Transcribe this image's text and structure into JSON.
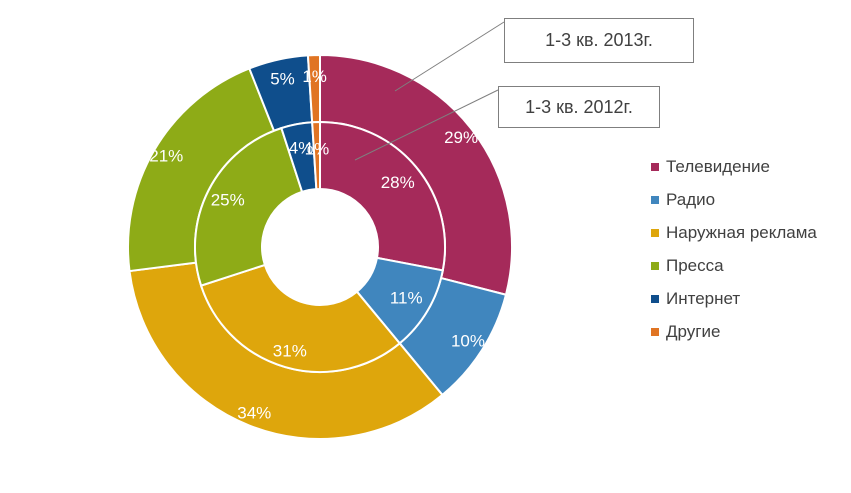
{
  "colors": {
    "tv": "#a52a5a",
    "radio": "#4086be",
    "outdoor": "#dea60c",
    "press": "#8eab17",
    "internet": "#0f4e8c",
    "other": "#e07423"
  },
  "chart_data": {
    "type": "donut",
    "categories": [
      "Телевидение",
      "Радио",
      "Наружная реклама",
      "Пресса",
      "Интернет",
      "Другие"
    ],
    "series": [
      {
        "name": "1-3 кв. 2013г.",
        "ring": "outer",
        "values": [
          29,
          10,
          34,
          21,
          5,
          1
        ],
        "labels": [
          "29%",
          "10%",
          "34%",
          "21%",
          "5%",
          "1%"
        ]
      },
      {
        "name": "1-3 кв. 2012г.",
        "ring": "inner",
        "values": [
          28,
          11,
          31,
          25,
          4,
          1
        ],
        "labels": [
          "28%",
          "11%",
          "31%",
          "25%",
          "4%",
          "1%"
        ]
      }
    ],
    "legend_position": "right"
  },
  "legend": {
    "items": [
      {
        "label": "Телевидение",
        "color": "#a52a5a"
      },
      {
        "label": "Радио",
        "color": "#4086be"
      },
      {
        "label": "Наружная реклама",
        "color": "#dea60c"
      },
      {
        "label": "Пресса",
        "color": "#8eab17"
      },
      {
        "label": "Интернет",
        "color": "#0f4e8c"
      },
      {
        "label": "Другие",
        "color": "#e07423"
      }
    ]
  },
  "callouts": {
    "outer": "1-3 кв. 2013г.",
    "inner": "1-3 кв. 2012г."
  }
}
